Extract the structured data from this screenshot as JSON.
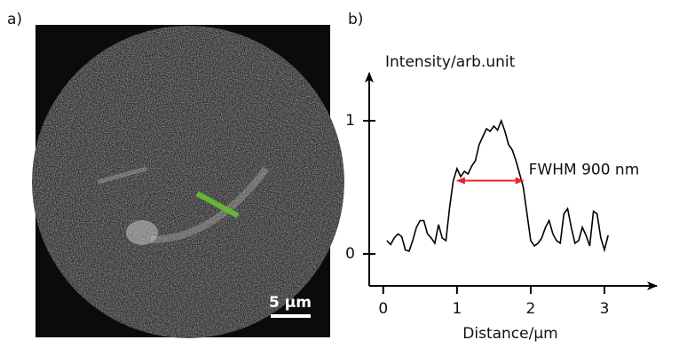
{
  "panel_labels": [
    "a)",
    "b)"
  ],
  "image": {
    "scale_bar": "5 µm"
  },
  "chart_data": {
    "type": "line",
    "ylabel": "Intensity/arb.unit",
    "xlabel": "Distance/µm",
    "x": [
      0.05,
      0.1,
      0.15,
      0.2,
      0.25,
      0.3,
      0.35,
      0.4,
      0.45,
      0.5,
      0.55,
      0.6,
      0.65,
      0.7,
      0.75,
      0.8,
      0.85,
      0.9,
      0.95,
      1.0,
      1.05,
      1.1,
      1.15,
      1.2,
      1.25,
      1.3,
      1.35,
      1.4,
      1.45,
      1.5,
      1.55,
      1.6,
      1.65,
      1.7,
      1.75,
      1.8,
      1.85,
      1.9,
      1.95,
      2.0,
      2.05,
      2.1,
      2.15,
      2.2,
      2.25,
      2.3,
      2.35,
      2.4,
      2.45,
      2.5,
      2.55,
      2.6,
      2.65,
      2.7,
      2.75,
      2.8,
      2.85,
      2.9,
      2.95,
      3.0,
      3.05
    ],
    "values": [
      0.1,
      0.07,
      0.12,
      0.15,
      0.13,
      0.03,
      0.02,
      0.1,
      0.2,
      0.25,
      0.25,
      0.15,
      0.12,
      0.08,
      0.22,
      0.12,
      0.1,
      0.35,
      0.55,
      0.64,
      0.58,
      0.62,
      0.6,
      0.66,
      0.7,
      0.82,
      0.88,
      0.94,
      0.92,
      0.96,
      0.93,
      1.0,
      0.92,
      0.82,
      0.78,
      0.7,
      0.6,
      0.5,
      0.3,
      0.1,
      0.06,
      0.08,
      0.12,
      0.2,
      0.25,
      0.15,
      0.1,
      0.08,
      0.3,
      0.34,
      0.2,
      0.08,
      0.1,
      0.2,
      0.14,
      0.06,
      0.32,
      0.3,
      0.12,
      0.03,
      0.14
    ],
    "color": "#000000",
    "xlim": [
      -0.19,
      3.71
    ],
    "ylim": [
      -0.24,
      1.36
    ],
    "xticks": [
      0,
      1,
      2,
      3
    ],
    "yticks": [
      0,
      1
    ],
    "fwhm": {
      "label": "FWHM 900 nm",
      "x": [
        1.0,
        1.9
      ],
      "y": 0.55,
      "color": "#e8262a"
    }
  }
}
